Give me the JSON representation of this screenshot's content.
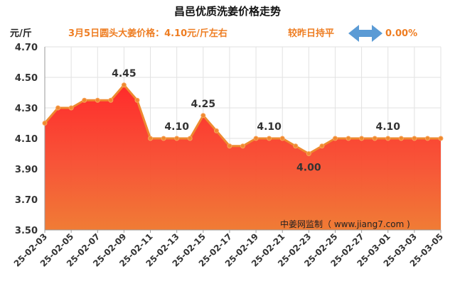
{
  "chart_data": {
    "type": "area",
    "title": "昌邑优质洗姜价格走势",
    "unit_label": "元/斤",
    "subtitle": "3月5日圆头大姜价格：4.10元/斤左右",
    "compare_label": "较昨日持平",
    "change_value": "0.00%",
    "watermark": "中姜网监制（ www.jiang7.com )",
    "ylim": [
      3.5,
      4.7
    ],
    "yticks": [
      3.5,
      3.7,
      3.9,
      4.1,
      4.3,
      4.5,
      4.7
    ],
    "x": [
      "25-02-03",
      "25-02-04",
      "25-02-05",
      "25-02-06",
      "25-02-07",
      "25-02-08",
      "25-02-09",
      "25-02-10",
      "25-02-11",
      "25-02-12",
      "25-02-13",
      "25-02-14",
      "25-02-15",
      "25-02-16",
      "25-02-17",
      "25-02-18",
      "25-02-19",
      "25-02-20",
      "25-02-21",
      "25-02-22",
      "25-02-23",
      "25-02-24",
      "25-02-25",
      "25-02-26",
      "25-02-27",
      "25-02-28",
      "25-03-01",
      "25-03-02",
      "25-03-03",
      "25-03-04",
      "25-03-05"
    ],
    "xtick_labels": [
      "25-02-03",
      "25-02-05",
      "25-02-07",
      "25-02-09",
      "25-02-11",
      "25-02-13",
      "25-02-15",
      "25-02-17",
      "25-02-19",
      "25-02-21",
      "25-02-23",
      "25-02-25",
      "25-02-27",
      "25-03-01",
      "25-03-03",
      "25-03-05"
    ],
    "values": [
      4.2,
      4.3,
      4.3,
      4.35,
      4.35,
      4.35,
      4.45,
      4.35,
      4.1,
      4.1,
      4.1,
      4.1,
      4.25,
      4.15,
      4.05,
      4.05,
      4.1,
      4.1,
      4.1,
      4.05,
      4.0,
      4.05,
      4.1,
      4.1,
      4.1,
      4.1,
      4.1,
      4.1,
      4.1,
      4.1,
      4.1
    ],
    "annotations": [
      {
        "index": 6,
        "text": "4.45"
      },
      {
        "index": 10,
        "text": "4.10"
      },
      {
        "index": 12,
        "text": "4.25"
      },
      {
        "index": 17,
        "text": "4.10"
      },
      {
        "index": 20,
        "text": "4.00"
      },
      {
        "index": 26,
        "text": "4.10"
      }
    ],
    "colors": {
      "line": "#ee8a30",
      "fill_top": "#ff2b2b",
      "fill_bottom": "#f07c35",
      "accent": "#ee7d22",
      "arrow": "#5b9bd5",
      "grid": "#e2e2e2"
    }
  }
}
